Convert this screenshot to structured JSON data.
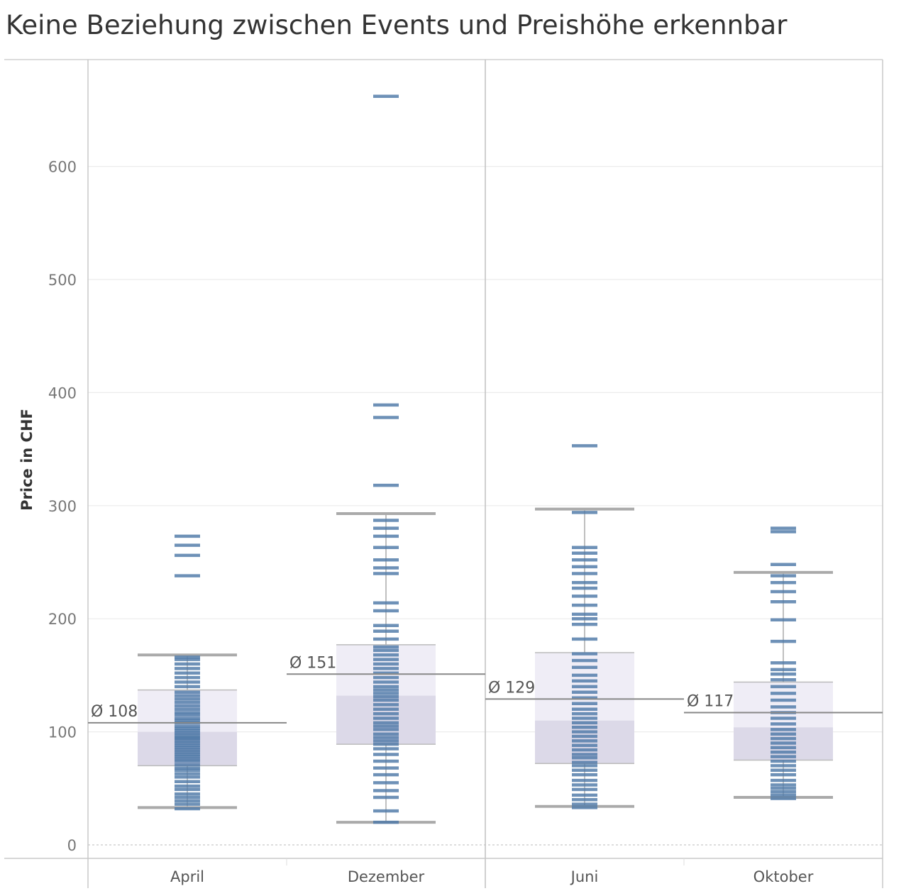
{
  "chart_data": {
    "type": "boxplot",
    "title": "Keine Beziehung zwischen Events und Preishöhe erkennbar",
    "xlabel": "",
    "ylabel": "Price in CHF",
    "ylim": [
      0,
      680
    ],
    "yticks": [
      0,
      100,
      200,
      300,
      400,
      500,
      600
    ],
    "grid": true,
    "categories": [
      "April",
      "Dezember",
      "Juni",
      "Oktober"
    ],
    "colors": {
      "mark": "#4e79a7",
      "box_upper": "#efedf6",
      "box_lower": "#dcd9e8",
      "whisker": "#aaaaaa",
      "average_line": "#888888"
    },
    "series": [
      {
        "category": "April",
        "average": 108,
        "average_label": "Ø 108",
        "whisker_low": 33,
        "q1": 70,
        "median": 100,
        "q3": 137,
        "whisker_high": 168,
        "values": [
          32,
          36,
          39,
          42,
          45,
          49,
          52,
          56,
          60,
          63,
          66,
          68,
          71,
          74,
          76,
          78,
          80,
          82,
          84,
          86,
          88,
          90,
          92,
          94,
          95,
          97,
          99,
          101,
          103,
          105,
          108,
          110,
          112,
          115,
          117,
          120,
          123,
          126,
          129,
          132,
          135,
          140,
          144,
          148,
          152,
          156,
          160,
          164,
          166,
          238,
          256,
          265,
          273
        ]
      },
      {
        "category": "Dezember",
        "average": 151,
        "average_label": "Ø 151",
        "whisker_low": 20,
        "q1": 89,
        "median": 132,
        "q3": 177,
        "whisker_high": 293,
        "values": [
          20,
          30,
          42,
          48,
          55,
          62,
          68,
          74,
          80,
          85,
          89,
          92,
          95,
          98,
          102,
          105,
          108,
          112,
          116,
          120,
          124,
          128,
          131,
          134,
          137,
          140,
          144,
          148,
          152,
          156,
          160,
          164,
          168,
          172,
          175,
          182,
          189,
          194,
          207,
          214,
          240,
          245,
          252,
          263,
          273,
          280,
          287,
          318,
          378,
          389,
          662
        ]
      },
      {
        "category": "Juni",
        "average": 129,
        "average_label": "Ø 129",
        "whisker_low": 34,
        "q1": 72,
        "median": 110,
        "q3": 170,
        "whisker_high": 297,
        "values": [
          33,
          36,
          40,
          44,
          49,
          53,
          57,
          62,
          66,
          70,
          73,
          77,
          80,
          84,
          88,
          92,
          96,
          100,
          104,
          108,
          112,
          116,
          120,
          125,
          130,
          135,
          140,
          145,
          150,
          157,
          163,
          169,
          182,
          195,
          200,
          204,
          212,
          220,
          227,
          232,
          240,
          246,
          252,
          258,
          263,
          294,
          353
        ]
      },
      {
        "category": "Oktober",
        "average": 117,
        "average_label": "Ø 117",
        "whisker_low": 42,
        "q1": 75,
        "median": 104,
        "q3": 144,
        "whisker_high": 241,
        "values": [
          41,
          44,
          47,
          50,
          53,
          57,
          62,
          66,
          70,
          74,
          78,
          82,
          86,
          90,
          94,
          98,
          102,
          107,
          112,
          117,
          122,
          128,
          134,
          140,
          146,
          151,
          155,
          161,
          180,
          199,
          215,
          224,
          232,
          238,
          248,
          277,
          280
        ]
      }
    ]
  }
}
